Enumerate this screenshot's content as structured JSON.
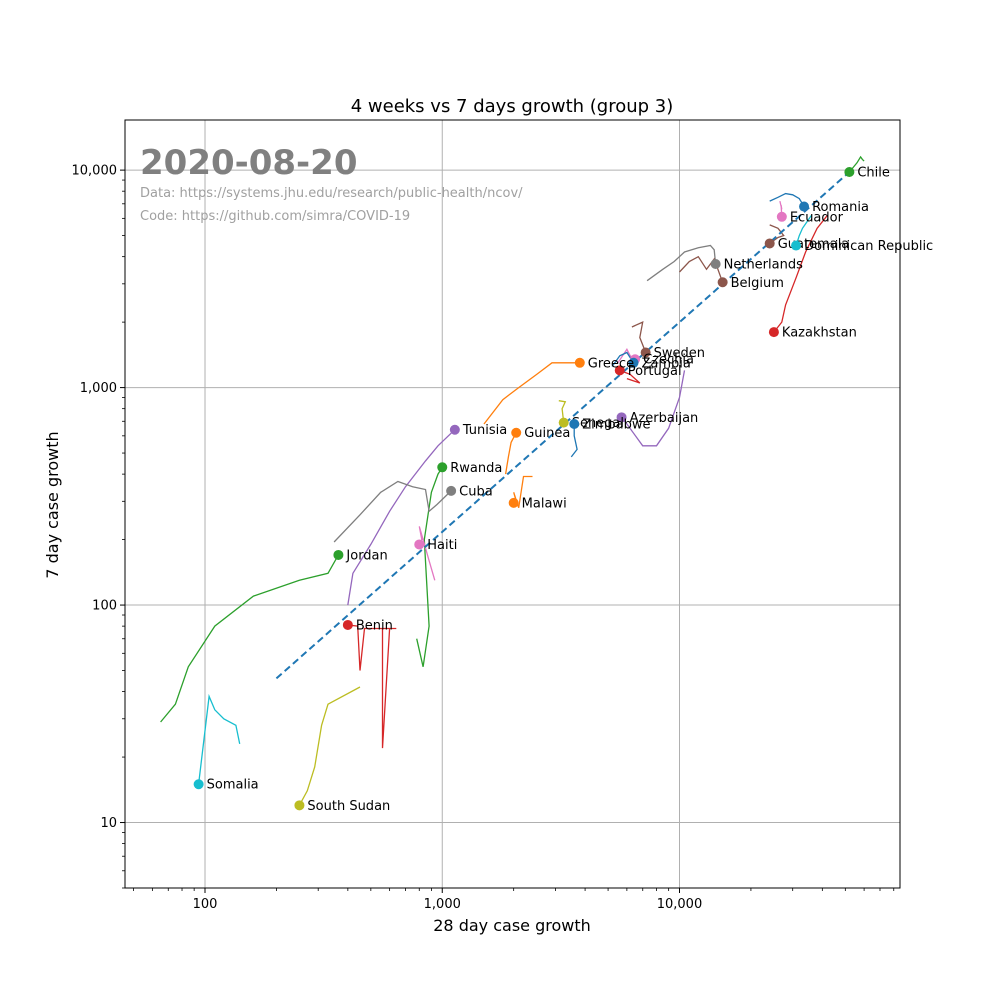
{
  "chart_data": {
    "type": "line",
    "title": "4 weeks vs 7 days growth (group 3)",
    "xlabel": "28 day case growth",
    "ylabel": "7 day case growth",
    "xscale": "log",
    "yscale": "log",
    "xlim": [
      46,
      85000
    ],
    "ylim": [
      5,
      17000
    ],
    "grid": true,
    "x_ticks": [
      100,
      1000,
      10000
    ],
    "x_tick_labels": [
      "100",
      "1,000",
      "10,000"
    ],
    "y_ticks": [
      10,
      100,
      1000,
      10000
    ],
    "y_tick_labels": [
      "10",
      "100",
      "1,000",
      "10,000"
    ],
    "annotations": {
      "date": "2020-08-20",
      "data_source": "Data: https://systems.jhu.edu/research/public-health/ncov/",
      "code_source": "Code: https://github.com/simra/COVID-19"
    },
    "reference_line": {
      "style": "dashed",
      "color": "#1f77b4",
      "points": [
        [
          200,
          46
        ],
        [
          52000,
          9800
        ]
      ]
    },
    "series": [
      {
        "name": "Chile",
        "color": "#2ca02c",
        "point": [
          52000,
          9800
        ],
        "trail": [
          [
            52000,
            9800
          ],
          [
            56000,
            10800
          ],
          [
            58000,
            11500
          ],
          [
            59000,
            11200
          ],
          [
            60000,
            11000
          ]
        ]
      },
      {
        "name": "Romania",
        "color": "#1f77b4",
        "point": [
          33500,
          6800
        ],
        "trail": [
          [
            24000,
            7200
          ],
          [
            26000,
            7500
          ],
          [
            28000,
            7800
          ],
          [
            30000,
            7700
          ],
          [
            32000,
            7400
          ],
          [
            33500,
            6800
          ]
        ]
      },
      {
        "name": "Ecuador",
        "color": "#e377c2",
        "point": [
          27000,
          6100
        ],
        "trail": [
          [
            26500,
            7200
          ],
          [
            27000,
            6600
          ],
          [
            26800,
            6900
          ],
          [
            27000,
            6100
          ]
        ]
      },
      {
        "name": "Guatemala",
        "color": "#8c564b",
        "point": [
          24000,
          4600
        ],
        "trail": [
          [
            24000,
            5600
          ],
          [
            26000,
            5400
          ],
          [
            27500,
            5000
          ],
          [
            26000,
            4900
          ],
          [
            24000,
            4600
          ]
        ]
      },
      {
        "name": "Dominican Republic",
        "color": "#17becf",
        "point": [
          31000,
          4500
        ],
        "trail": [
          [
            36000,
            6200
          ],
          [
            34500,
            5800
          ],
          [
            33000,
            5400
          ],
          [
            32000,
            5000
          ],
          [
            31000,
            4500
          ]
        ]
      },
      {
        "name": "Netherlands",
        "color": "#7f7f7f",
        "point": [
          14200,
          3700
        ],
        "trail": [
          [
            7300,
            3100
          ],
          [
            8500,
            3500
          ],
          [
            9500,
            3800
          ],
          [
            10500,
            4200
          ],
          [
            12000,
            4400
          ],
          [
            13500,
            4500
          ],
          [
            14000,
            4300
          ],
          [
            14200,
            3700
          ]
        ]
      },
      {
        "name": "Belgium",
        "color": "#8c564b",
        "point": [
          15200,
          3050
        ],
        "trail": [
          [
            10000,
            3400
          ],
          [
            11000,
            3800
          ],
          [
            12000,
            4000
          ],
          [
            13000,
            3500
          ],
          [
            14000,
            3900
          ],
          [
            15200,
            3050
          ]
        ]
      },
      {
        "name": "Kazakhstan",
        "color": "#d62728",
        "point": [
          25000,
          1800
        ],
        "trail": [
          [
            42000,
            6200
          ],
          [
            38000,
            5400
          ],
          [
            34000,
            4200
          ],
          [
            31000,
            3200
          ],
          [
            28000,
            2400
          ],
          [
            27000,
            2000
          ],
          [
            25000,
            1800
          ]
        ]
      },
      {
        "name": "Sweden",
        "color": "#8c564b",
        "point": [
          7200,
          1450
        ],
        "trail": [
          [
            6300,
            1900
          ],
          [
            7000,
            2000
          ],
          [
            6800,
            1700
          ],
          [
            7200,
            1450
          ]
        ]
      },
      {
        "name": "Czechia",
        "color": "#e377c2",
        "point": [
          6500,
          1350
        ],
        "trail": [
          [
            5500,
            1300
          ],
          [
            6000,
            1500
          ],
          [
            6200,
            1400
          ],
          [
            6500,
            1350
          ]
        ]
      },
      {
        "name": "Zambia",
        "color": "#1f77b4",
        "point": [
          6400,
          1300
        ],
        "trail": [
          [
            5200,
            1250
          ],
          [
            5600,
            1400
          ],
          [
            6000,
            1450
          ],
          [
            6400,
            1300
          ]
        ]
      },
      {
        "name": "Portugal",
        "color": "#d62728",
        "point": [
          5600,
          1200
        ],
        "trail": [
          [
            6000,
            1100
          ],
          [
            6800,
            1050
          ],
          [
            6200,
            1150
          ],
          [
            5600,
            1200
          ]
        ]
      },
      {
        "name": "Greece",
        "color": "#ff7f0e",
        "point": [
          3800,
          1300
        ],
        "trail": [
          [
            1500,
            680
          ],
          [
            1800,
            880
          ],
          [
            2100,
            1000
          ],
          [
            2500,
            1150
          ],
          [
            2900,
            1300
          ],
          [
            3800,
            1300
          ]
        ]
      },
      {
        "name": "Azerbaijan",
        "color": "#9467bd",
        "point": [
          5700,
          730
        ],
        "trail": [
          [
            10500,
            1200
          ],
          [
            10000,
            900
          ],
          [
            9000,
            650
          ],
          [
            8000,
            540
          ],
          [
            7000,
            540
          ],
          [
            6000,
            680
          ],
          [
            5700,
            730
          ]
        ]
      },
      {
        "name": "Senegal",
        "color": "#bcbd22",
        "point": [
          3250,
          690
        ],
        "trail": [
          [
            3100,
            870
          ],
          [
            3300,
            860
          ],
          [
            3200,
            800
          ],
          [
            3250,
            690
          ]
        ]
      },
      {
        "name": "Zimbabwe",
        "color": "#1f77b4",
        "point": [
          3600,
          680
        ],
        "trail": [
          [
            3500,
            480
          ],
          [
            3700,
            520
          ],
          [
            3600,
            600
          ],
          [
            3600,
            680
          ]
        ]
      },
      {
        "name": "Tunisia",
        "color": "#9467bd",
        "point": [
          1130,
          640
        ],
        "trail": [
          [
            400,
            100
          ],
          [
            420,
            140
          ],
          [
            500,
            190
          ],
          [
            600,
            270
          ],
          [
            700,
            350
          ],
          [
            850,
            460
          ],
          [
            960,
            540
          ],
          [
            1130,
            640
          ]
        ]
      },
      {
        "name": "Guinea",
        "color": "#ff7f0e",
        "point": [
          2050,
          620
        ],
        "trail": [
          [
            1850,
            400
          ],
          [
            1900,
            480
          ],
          [
            1950,
            560
          ],
          [
            2050,
            620
          ]
        ]
      },
      {
        "name": "Rwanda",
        "color": "#2ca02c",
        "point": [
          1000,
          430
        ],
        "trail": [
          [
            780,
            70
          ],
          [
            830,
            52
          ],
          [
            880,
            80
          ],
          [
            840,
            200
          ],
          [
            900,
            330
          ],
          [
            960,
            400
          ],
          [
            1000,
            430
          ]
        ]
      },
      {
        "name": "Cuba",
        "color": "#7f7f7f",
        "point": [
          1090,
          335
        ],
        "trail": [
          [
            350,
            195
          ],
          [
            450,
            260
          ],
          [
            550,
            330
          ],
          [
            650,
            370
          ],
          [
            750,
            350
          ],
          [
            850,
            340
          ],
          [
            880,
            270
          ],
          [
            950,
            290
          ],
          [
            1090,
            335
          ]
        ]
      },
      {
        "name": "Malawi",
        "color": "#ff7f0e",
        "point": [
          2000,
          295
        ],
        "trail": [
          [
            2400,
            390
          ],
          [
            2200,
            390
          ],
          [
            2100,
            280
          ],
          [
            2000,
            330
          ],
          [
            2050,
            300
          ],
          [
            2000,
            295
          ]
        ]
      },
      {
        "name": "Haiti",
        "color": "#e377c2",
        "point": [
          800,
          190
        ],
        "trail": [
          [
            930,
            130
          ],
          [
            880,
            160
          ],
          [
            830,
            200
          ],
          [
            800,
            230
          ],
          [
            820,
            200
          ],
          [
            800,
            190
          ]
        ]
      },
      {
        "name": "Jordan",
        "color": "#2ca02c",
        "point": [
          365,
          170
        ],
        "trail": [
          [
            65,
            29
          ],
          [
            75,
            35
          ],
          [
            85,
            52
          ],
          [
            110,
            80
          ],
          [
            160,
            110
          ],
          [
            250,
            130
          ],
          [
            330,
            140
          ],
          [
            365,
            170
          ]
        ]
      },
      {
        "name": "Benin",
        "color": "#d62728",
        "point": [
          400,
          81
        ],
        "trail": [
          [
            640,
            78
          ],
          [
            560,
            78
          ],
          [
            560,
            22
          ],
          [
            600,
            78
          ],
          [
            470,
            78
          ],
          [
            450,
            50
          ],
          [
            440,
            80
          ],
          [
            400,
            81
          ]
        ]
      },
      {
        "name": "Somalia",
        "color": "#17becf",
        "point": [
          94,
          15
        ],
        "trail": [
          [
            140,
            23
          ],
          [
            135,
            28
          ],
          [
            120,
            30
          ],
          [
            110,
            33
          ],
          [
            104,
            38
          ],
          [
            94,
            15
          ]
        ]
      },
      {
        "name": "South Sudan",
        "color": "#bcbd22",
        "point": [
          250,
          12
        ],
        "trail": [
          [
            450,
            42
          ],
          [
            330,
            35
          ],
          [
            310,
            28
          ],
          [
            290,
            18
          ],
          [
            270,
            14
          ],
          [
            250,
            12
          ]
        ]
      }
    ]
  }
}
